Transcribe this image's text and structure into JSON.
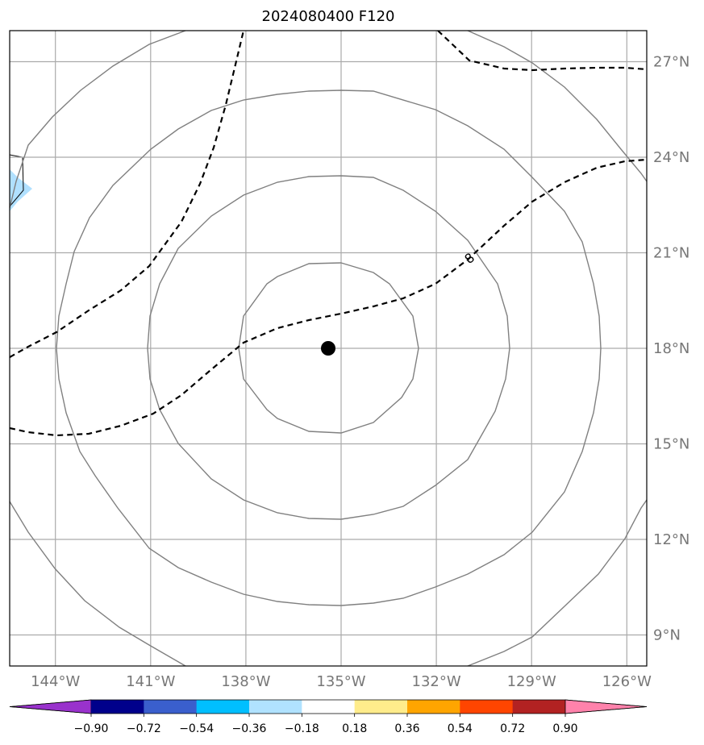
{
  "title": "2024080400 F120",
  "map": {
    "lon_range": [
      -146,
      -125
    ],
    "lat_range": [
      7,
      27.8
    ],
    "lon_ticks": [
      -144,
      -141,
      -138,
      -135,
      -132,
      -129,
      -126
    ],
    "lon_tick_labels": [
      "144°W",
      "141°W",
      "138°W",
      "135°W",
      "132°W",
      "129°W",
      "126°W"
    ],
    "lat_ticks": [
      9,
      12,
      15,
      18,
      21,
      24,
      27
    ],
    "lat_tick_labels": [
      "9°N",
      "12°N",
      "15°N",
      "18°N",
      "21°N",
      "24°N",
      "27°N"
    ],
    "grid": true,
    "center_marker": {
      "lon": -135.4,
      "lat": 18.0
    },
    "contour_label": "8",
    "colors": {
      "grid": "#aaaaaa",
      "contour": "#808080",
      "dashed": "#000000",
      "shade": "#b0e0ff"
    }
  },
  "colorbar": {
    "tick_labels": [
      "−0.90",
      "−0.72",
      "−0.54",
      "−0.36",
      "−0.18",
      "0.18",
      "0.36",
      "0.54",
      "0.72",
      "0.90"
    ],
    "colors": [
      "#9932cc",
      "#00008b",
      "#3a5fcd",
      "#00bfff",
      "#b0e2ff",
      "#ffffff",
      "#ffec8b",
      "#ffa500",
      "#ff4500",
      "#b22222",
      "#ff82ab"
    ]
  }
}
